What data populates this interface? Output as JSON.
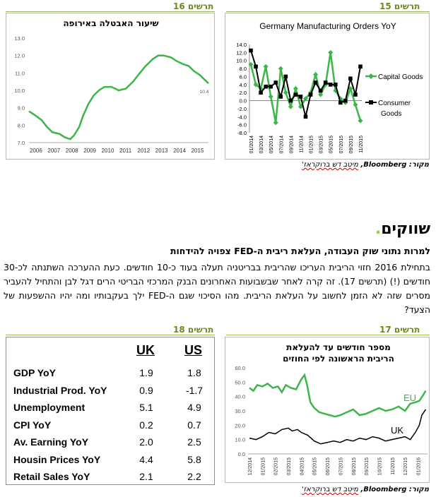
{
  "figures": {
    "fig15_label": "תרשים 15",
    "fig16_label": "תרשים 16",
    "fig17_label": "תרשים 17",
    "fig18_label": "תרשים 18"
  },
  "source_top": {
    "prefix": "מקור: Bloomberg, ",
    "underlined": "מיטב דש ברוקראז'"
  },
  "source_bottom": {
    "prefix": "מקור: Bloomberg, ",
    "underlined": "מיטב דש ברוקראז'"
  },
  "section": {
    "title": "שווקים",
    "bullet": "."
  },
  "subhead": "למרות נתוני שוק העבודה, העלאת ריבית ה-FED צפויה להידחות",
  "paragraph": "בתחילת 2016 חזוי הריבית העריכו שהריבית בבריטניה תעלה בעוד כ-10 חודשים. כעת ההערכה השתנתה לכ-30 חודשים (!) (תרשים 17). זה קרה לאחר שבשבועות האחרונים הבנק המרכזי הבריטי הרים דגל לבן והתחיל להעביר מסרים שזה לא הזמן לחשוב על העלאת הריבית. מהו הסיכוי שגם ה-FED ילך בעקבותיו ומה יהיו ההשפעות של הצעד?",
  "table": {
    "col_uk": "UK",
    "col_us": "US",
    "rows": [
      {
        "label": "GDP YoY",
        "uk": "1.9",
        "us": "1.8"
      },
      {
        "label": "Industrial Prod. YoY",
        "uk": "0.9",
        "us": "-1.7"
      },
      {
        "label": "Unemployment",
        "uk": "5.1",
        "us": "4.9"
      },
      {
        "label": "CPI YoY",
        "uk": "0.2",
        "us": "0.7"
      },
      {
        "label": "Av. Earning YoY",
        "uk": "2.0",
        "us": "2.5"
      },
      {
        "label": "Housin Prices YoY",
        "uk": "4.4",
        "us": "5.8"
      },
      {
        "label": "Retail Sales YoY",
        "uk": "2.1",
        "us": "2.2"
      }
    ]
  },
  "colors": {
    "green": "#00b050",
    "series_green": "#3cb54a",
    "black": "#000000",
    "figure_label": "#6b8a1f"
  },
  "chart_data": [
    {
      "id": "germany",
      "type": "line",
      "title": "Germany Manufacturing Orders YoY",
      "x": [
        "01/2014",
        "02/2014",
        "03/2014",
        "04/2014",
        "05/2014",
        "06/2014",
        "07/2014",
        "08/2014",
        "09/2014",
        "10/2014",
        "11/2014",
        "12/2014",
        "01/2015",
        "02/2015",
        "03/2015",
        "04/2015",
        "05/2015",
        "06/2015",
        "07/2015",
        "08/2015",
        "09/2015",
        "10/2015",
        "11/2015"
      ],
      "tick_labels": [
        "01/2014",
        "03/2014",
        "05/2014",
        "07/2014",
        "09/2014",
        "11/2014",
        "01/2015",
        "03/2015",
        "05/2015",
        "07/2015",
        "09/2015",
        "11/2015"
      ],
      "ylim": [
        -8,
        14
      ],
      "yticks": [
        "14.0",
        "12.0",
        "10.0",
        "8.0",
        "6.0",
        "4.0",
        "2.0",
        "0.0",
        "-2.0",
        "-4.0",
        "-6.0",
        "-8.0"
      ],
      "series": [
        {
          "name": "Capital Goods",
          "values": [
            9.0,
            4.0,
            3.0,
            8.5,
            1.0,
            -5.5,
            8.0,
            2.0,
            -1.5,
            3.0,
            -1.5,
            0.5,
            2.0,
            6.5,
            1.5,
            4.0,
            12.0,
            2.5,
            0.5,
            -0.5,
            3.0,
            -1.0,
            -5.0
          ]
        },
        {
          "name": "Consumer Goods",
          "values": [
            12.5,
            8.5,
            2.0,
            3.5,
            3.5,
            4.5,
            1.0,
            6.0,
            0.0,
            1.5,
            1.0,
            -4.0,
            1.5,
            4.5,
            2.5,
            4.5,
            4.0,
            4.0,
            -0.5,
            0.0,
            5.5,
            1.5,
            8.5
          ]
        }
      ]
    },
    {
      "id": "euro_unemp",
      "type": "line",
      "title": "שיעור האבטלה באירופה",
      "x_ticks": [
        "2006",
        "2007",
        "2008",
        "2009",
        "2010",
        "2011",
        "2012",
        "2013",
        "2014",
        "2015"
      ],
      "ylim": [
        7.0,
        13.0
      ],
      "yticks": [
        "13.0",
        "12.0",
        "11.0",
        "10.0",
        "9.0",
        "8.0",
        "7.0"
      ],
      "last_label": "10.4",
      "series": [
        {
          "name": "Euro Area Unemployment",
          "points": [
            [
              2006.0,
              8.8
            ],
            [
              2006.3,
              8.6
            ],
            [
              2006.7,
              8.3
            ],
            [
              2007.0,
              7.9
            ],
            [
              2007.3,
              7.6
            ],
            [
              2007.7,
              7.5
            ],
            [
              2008.0,
              7.3
            ],
            [
              2008.3,
              7.2
            ],
            [
              2008.5,
              7.4
            ],
            [
              2008.8,
              7.9
            ],
            [
              2009.0,
              8.5
            ],
            [
              2009.3,
              9.2
            ],
            [
              2009.6,
              9.7
            ],
            [
              2009.9,
              10.0
            ],
            [
              2010.2,
              10.2
            ],
            [
              2010.6,
              10.2
            ],
            [
              2011.0,
              10.0
            ],
            [
              2011.4,
              10.1
            ],
            [
              2011.8,
              10.5
            ],
            [
              2012.1,
              10.9
            ],
            [
              2012.5,
              11.4
            ],
            [
              2012.9,
              11.8
            ],
            [
              2013.2,
              12.0
            ],
            [
              2013.5,
              12.0
            ],
            [
              2013.9,
              11.9
            ],
            [
              2014.2,
              11.7
            ],
            [
              2014.6,
              11.5
            ],
            [
              2014.9,
              11.4
            ],
            [
              2015.2,
              11.1
            ],
            [
              2015.5,
              10.9
            ],
            [
              2015.8,
              10.6
            ],
            [
              2016.0,
              10.4
            ]
          ]
        }
      ]
    },
    {
      "id": "rate_hike",
      "type": "line",
      "title": "מספר חודשים עד להעלאת הריבית הראשונה לפי החוזים",
      "x_ticks": [
        "12/2014",
        "01/2015",
        "02/2015",
        "03/2015",
        "04/2015",
        "05/2015",
        "06/2015",
        "07/2015",
        "08/2015",
        "09/2015",
        "10/2015",
        "11/2015",
        "12/2015",
        "01/2016"
      ],
      "ylim": [
        0,
        60
      ],
      "yticks": [
        "60.0",
        "50.0",
        "40.0",
        "30.0",
        "20.0",
        "10.0",
        "0.0"
      ],
      "series": [
        {
          "name": "EU",
          "points": [
            [
              0,
              46
            ],
            [
              0.3,
              44
            ],
            [
              0.6,
              48
            ],
            [
              1.0,
              47
            ],
            [
              1.4,
              49
            ],
            [
              1.8,
              46
            ],
            [
              2.2,
              47
            ],
            [
              2.5,
              43
            ],
            [
              2.8,
              48
            ],
            [
              3.2,
              46
            ],
            [
              3.6,
              45
            ],
            [
              4.0,
              52
            ],
            [
              4.25,
              55
            ],
            [
              4.45,
              48
            ],
            [
              4.7,
              36
            ],
            [
              5.0,
              32
            ],
            [
              5.4,
              29
            ],
            [
              5.8,
              28
            ],
            [
              6.2,
              27
            ],
            [
              6.6,
              26
            ],
            [
              7.0,
              27
            ],
            [
              7.5,
              29
            ],
            [
              8.0,
              31
            ],
            [
              8.5,
              27
            ],
            [
              9.0,
              28
            ],
            [
              9.5,
              30
            ],
            [
              10.0,
              32
            ],
            [
              10.5,
              30
            ],
            [
              11.0,
              31
            ],
            [
              11.5,
              33
            ],
            [
              12.0,
              30
            ],
            [
              12.4,
              35
            ],
            [
              12.8,
              36
            ],
            [
              13.1,
              37
            ],
            [
              13.4,
              41
            ],
            [
              13.6,
              44
            ]
          ]
        },
        {
          "name": "UK",
          "points": [
            [
              0,
              11
            ],
            [
              0.5,
              10
            ],
            [
              1.0,
              12
            ],
            [
              1.5,
              15
            ],
            [
              2.0,
              14
            ],
            [
              2.5,
              17
            ],
            [
              3.0,
              18
            ],
            [
              3.3,
              16
            ],
            [
              3.7,
              17
            ],
            [
              4.0,
              15
            ],
            [
              4.5,
              13
            ],
            [
              5.0,
              9
            ],
            [
              5.5,
              7
            ],
            [
              6.0,
              8
            ],
            [
              6.5,
              9
            ],
            [
              7.0,
              8
            ],
            [
              7.5,
              10
            ],
            [
              8.0,
              9
            ],
            [
              8.5,
              11
            ],
            [
              9.0,
              10
            ],
            [
              9.5,
              12
            ],
            [
              10.0,
              11
            ],
            [
              10.5,
              9
            ],
            [
              11.0,
              10
            ],
            [
              11.5,
              11
            ],
            [
              12.0,
              12
            ],
            [
              12.4,
              10
            ],
            [
              12.8,
              15
            ],
            [
              13.1,
              20
            ],
            [
              13.3,
              27
            ],
            [
              13.6,
              31
            ]
          ]
        }
      ]
    }
  ]
}
